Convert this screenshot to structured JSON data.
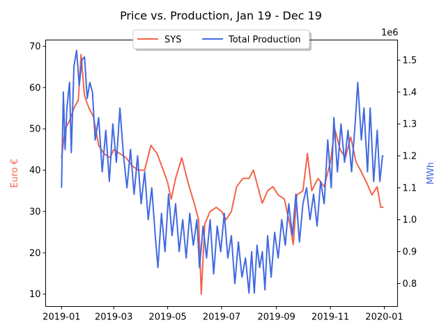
{
  "chart_data": {
    "type": "line",
    "title": "Price vs. Production, Jan 19 - Dec 19",
    "xlabel": "",
    "x_tick_labels": [
      "2019-01",
      "2019-03",
      "2019-05",
      "2019-07",
      "2019-09",
      "2019-11",
      "2020-01"
    ],
    "x_range": [
      "2018-12-14",
      "2020-01-16"
    ],
    "grid": false,
    "legend": {
      "placement": "top-center",
      "entries": [
        "SYS",
        "Total Production"
      ]
    },
    "left_axis": {
      "label": "Euro €",
      "color": "#f4624a",
      "range": [
        7,
        71.5
      ],
      "ticks": [
        "10",
        "20",
        "30",
        "40",
        "50",
        "60",
        "70"
      ]
    },
    "right_axis": {
      "label": "MWh",
      "color": "#4169e1",
      "range": [
        0.728,
        1.563
      ],
      "ticks": [
        "0.8",
        "0.9",
        "1.0",
        "1.1",
        "1.2",
        "1.3",
        "1.4",
        "1.5"
      ],
      "offset_text": "1e6"
    },
    "series": [
      {
        "name": "SYS",
        "axis": "left",
        "color": "#f4624a",
        "points": [
          [
            "2019-01-01",
            43
          ],
          [
            "2019-01-05",
            50
          ],
          [
            "2019-01-10",
            52
          ],
          [
            "2019-01-15",
            55
          ],
          [
            "2019-01-20",
            57
          ],
          [
            "2019-01-23",
            68
          ],
          [
            "2019-01-27",
            58
          ],
          [
            "2019-02-01",
            55
          ],
          [
            "2019-02-06",
            53
          ],
          [
            "2019-02-12",
            46
          ],
          [
            "2019-02-18",
            44
          ],
          [
            "2019-02-25",
            43
          ],
          [
            "2019-03-01",
            45
          ],
          [
            "2019-03-08",
            44
          ],
          [
            "2019-03-15",
            43
          ],
          [
            "2019-03-22",
            41
          ],
          [
            "2019-03-29",
            40
          ],
          [
            "2019-04-05",
            40
          ],
          [
            "2019-04-12",
            46
          ],
          [
            "2019-04-19",
            44
          ],
          [
            "2019-04-26",
            40
          ],
          [
            "2019-05-01",
            37
          ],
          [
            "2019-05-05",
            33
          ],
          [
            "2019-05-10",
            38
          ],
          [
            "2019-05-17",
            43
          ],
          [
            "2019-05-24",
            37
          ],
          [
            "2019-05-31",
            32
          ],
          [
            "2019-06-05",
            28
          ],
          [
            "2019-06-08",
            10
          ],
          [
            "2019-06-12",
            27
          ],
          [
            "2019-06-18",
            30
          ],
          [
            "2019-06-25",
            31
          ],
          [
            "2019-07-01",
            30
          ],
          [
            "2019-07-06",
            28
          ],
          [
            "2019-07-12",
            30
          ],
          [
            "2019-07-18",
            36
          ],
          [
            "2019-07-25",
            38
          ],
          [
            "2019-08-01",
            38
          ],
          [
            "2019-08-06",
            40
          ],
          [
            "2019-08-11",
            36
          ],
          [
            "2019-08-16",
            32
          ],
          [
            "2019-08-22",
            35
          ],
          [
            "2019-08-28",
            36
          ],
          [
            "2019-09-03",
            34
          ],
          [
            "2019-09-10",
            33
          ],
          [
            "2019-09-17",
            26
          ],
          [
            "2019-09-20",
            22
          ],
          [
            "2019-09-24",
            34
          ],
          [
            "2019-10-01",
            35
          ],
          [
            "2019-10-06",
            44
          ],
          [
            "2019-10-11",
            35
          ],
          [
            "2019-10-18",
            38
          ],
          [
            "2019-10-25",
            36
          ],
          [
            "2019-11-01",
            42
          ],
          [
            "2019-11-06",
            50
          ],
          [
            "2019-11-12",
            45
          ],
          [
            "2019-11-18",
            43
          ],
          [
            "2019-11-24",
            48
          ],
          [
            "2019-11-30",
            42
          ],
          [
            "2019-12-05",
            40
          ],
          [
            "2019-12-12",
            37
          ],
          [
            "2019-12-18",
            34
          ],
          [
            "2019-12-24",
            36
          ],
          [
            "2019-12-28",
            31
          ],
          [
            "2019-12-31",
            31
          ]
        ]
      },
      {
        "name": "Total Production",
        "axis": "right",
        "color": "#4169e1",
        "points": [
          [
            "2019-01-01",
            1.1
          ],
          [
            "2019-01-03",
            1.4
          ],
          [
            "2019-01-05",
            1.22
          ],
          [
            "2019-01-07",
            1.35
          ],
          [
            "2019-01-10",
            1.43
          ],
          [
            "2019-01-12",
            1.21
          ],
          [
            "2019-01-15",
            1.48
          ],
          [
            "2019-01-18",
            1.53
          ],
          [
            "2019-01-21",
            1.42
          ],
          [
            "2019-01-24",
            1.5
          ],
          [
            "2019-01-27",
            1.51
          ],
          [
            "2019-01-30",
            1.38
          ],
          [
            "2019-02-02",
            1.43
          ],
          [
            "2019-02-05",
            1.4
          ],
          [
            "2019-02-08",
            1.25
          ],
          [
            "2019-02-12",
            1.32
          ],
          [
            "2019-02-16",
            1.15
          ],
          [
            "2019-02-20",
            1.28
          ],
          [
            "2019-02-24",
            1.12
          ],
          [
            "2019-02-28",
            1.3
          ],
          [
            "2019-03-04",
            1.18
          ],
          [
            "2019-03-08",
            1.35
          ],
          [
            "2019-03-12",
            1.2
          ],
          [
            "2019-03-16",
            1.1
          ],
          [
            "2019-03-20",
            1.22
          ],
          [
            "2019-03-24",
            1.08
          ],
          [
            "2019-03-28",
            1.2
          ],
          [
            "2019-04-01",
            1.05
          ],
          [
            "2019-04-05",
            1.15
          ],
          [
            "2019-04-09",
            1.0
          ],
          [
            "2019-04-13",
            1.1
          ],
          [
            "2019-04-17",
            0.95
          ],
          [
            "2019-04-20",
            0.85
          ],
          [
            "2019-04-24",
            1.02
          ],
          [
            "2019-04-28",
            0.9
          ],
          [
            "2019-05-02",
            1.08
          ],
          [
            "2019-05-06",
            0.95
          ],
          [
            "2019-05-10",
            1.05
          ],
          [
            "2019-05-14",
            0.9
          ],
          [
            "2019-05-18",
            1.0
          ],
          [
            "2019-05-22",
            0.88
          ],
          [
            "2019-05-26",
            1.02
          ],
          [
            "2019-05-30",
            0.92
          ],
          [
            "2019-06-03",
            1.0
          ],
          [
            "2019-06-06",
            0.85
          ],
          [
            "2019-06-10",
            0.98
          ],
          [
            "2019-06-14",
            0.88
          ],
          [
            "2019-06-18",
            1.0
          ],
          [
            "2019-06-22",
            0.83
          ],
          [
            "2019-06-26",
            0.98
          ],
          [
            "2019-06-30",
            0.9
          ],
          [
            "2019-07-04",
            1.02
          ],
          [
            "2019-07-08",
            0.88
          ],
          [
            "2019-07-12",
            0.95
          ],
          [
            "2019-07-16",
            0.8
          ],
          [
            "2019-07-20",
            0.93
          ],
          [
            "2019-07-24",
            0.82
          ],
          [
            "2019-07-28",
            0.88
          ],
          [
            "2019-08-01",
            0.77
          ],
          [
            "2019-08-04",
            0.9
          ],
          [
            "2019-08-07",
            0.77
          ],
          [
            "2019-08-10",
            0.92
          ],
          [
            "2019-08-13",
            0.85
          ],
          [
            "2019-08-16",
            0.9
          ],
          [
            "2019-08-19",
            0.78
          ],
          [
            "2019-08-22",
            0.95
          ],
          [
            "2019-08-26",
            0.82
          ],
          [
            "2019-08-30",
            0.96
          ],
          [
            "2019-09-03",
            0.88
          ],
          [
            "2019-09-07",
            1.0
          ],
          [
            "2019-09-11",
            0.92
          ],
          [
            "2019-09-15",
            1.05
          ],
          [
            "2019-09-19",
            0.95
          ],
          [
            "2019-09-23",
            1.08
          ],
          [
            "2019-09-27",
            0.93
          ],
          [
            "2019-10-01",
            1.05
          ],
          [
            "2019-10-05",
            1.1
          ],
          [
            "2019-10-09",
            1.0
          ],
          [
            "2019-10-13",
            1.08
          ],
          [
            "2019-10-17",
            0.98
          ],
          [
            "2019-10-21",
            1.12
          ],
          [
            "2019-10-25",
            1.05
          ],
          [
            "2019-10-29",
            1.25
          ],
          [
            "2019-11-02",
            1.1
          ],
          [
            "2019-11-05",
            1.32
          ],
          [
            "2019-11-09",
            1.15
          ],
          [
            "2019-11-13",
            1.3
          ],
          [
            "2019-11-17",
            1.18
          ],
          [
            "2019-11-21",
            1.28
          ],
          [
            "2019-11-25",
            1.15
          ],
          [
            "2019-11-29",
            1.3
          ],
          [
            "2019-12-02",
            1.43
          ],
          [
            "2019-12-06",
            1.25
          ],
          [
            "2019-12-09",
            1.35
          ],
          [
            "2019-12-13",
            1.15
          ],
          [
            "2019-12-16",
            1.35
          ],
          [
            "2019-12-20",
            1.12
          ],
          [
            "2019-12-24",
            1.28
          ],
          [
            "2019-12-27",
            1.12
          ],
          [
            "2019-12-30",
            1.2
          ],
          [
            "2019-12-31",
            1.2
          ]
        ]
      }
    ]
  }
}
